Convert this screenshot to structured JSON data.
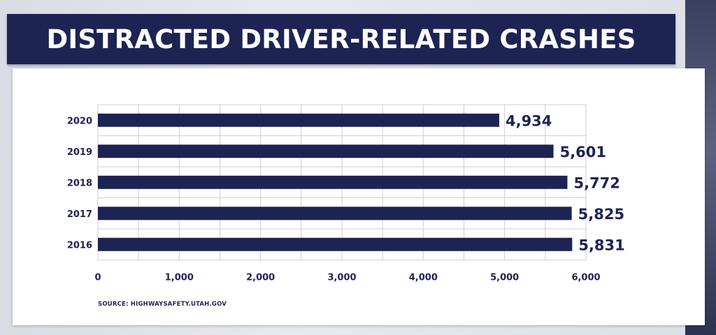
{
  "title": "DISTRACTED DRIVER-RELATED CRASHES",
  "source": "SOURCE: HIGHWAYSAFETY.UTAH.GOV",
  "colors": {
    "bar": "#1d2353",
    "title_bg": "#1d2353",
    "grid": "#cfcfd4",
    "text": "#1d2353"
  },
  "chart_data": {
    "type": "bar",
    "orientation": "horizontal",
    "title": "DISTRACTED DRIVER-RELATED CRASHES",
    "categories": [
      "2020",
      "2019",
      "2018",
      "2017",
      "2016"
    ],
    "values": [
      4934,
      5601,
      5772,
      5825,
      5831
    ],
    "value_labels": [
      "4,934",
      "5,601",
      "5,772",
      "5,825",
      "5,831"
    ],
    "xlim": [
      0,
      6000
    ],
    "xticks": [
      0,
      1000,
      2000,
      3000,
      4000,
      5000,
      6000
    ],
    "xtick_labels": [
      "0",
      "1,000",
      "2,000",
      "3,000",
      "4,000",
      "5,000",
      "6,000"
    ],
    "grid": true,
    "xlabel": "",
    "ylabel": ""
  }
}
